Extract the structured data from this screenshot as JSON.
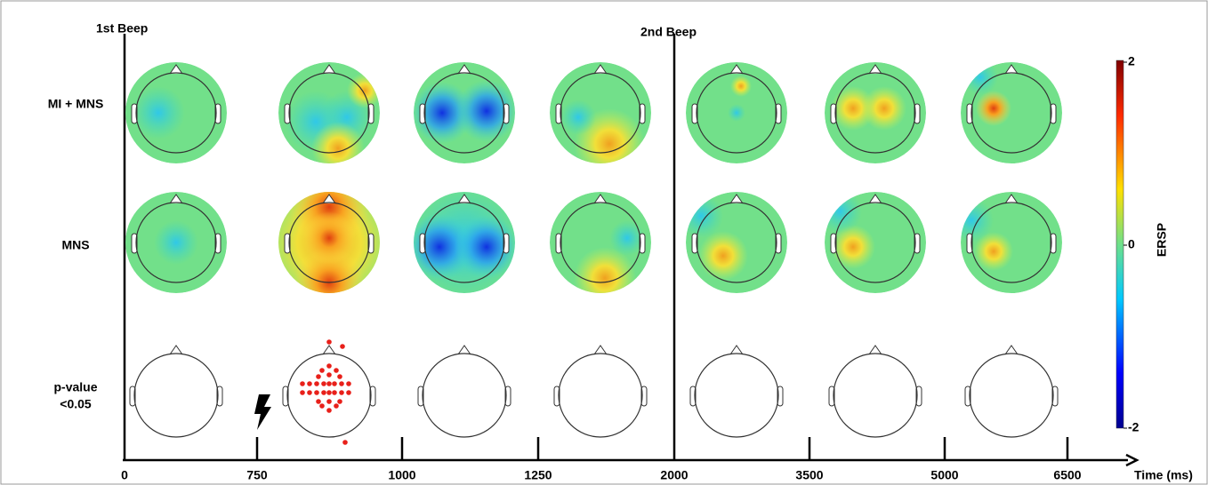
{
  "chart_data": {
    "type": "topomap",
    "markers": [
      "1st Beep",
      "2nd Beep"
    ],
    "rows": [
      "MI + MNS",
      "MNS",
      [
        "p-value",
        "<0.05"
      ]
    ],
    "x_label": "Time (ms)",
    "xticks": [
      0,
      750,
      1000,
      1250,
      2000,
      3500,
      5000,
      6500
    ],
    "colorbar": {
      "label": "ERSP",
      "lim": [
        -2,
        2
      ],
      "ticks": [
        -2,
        0,
        2
      ]
    }
  }
}
